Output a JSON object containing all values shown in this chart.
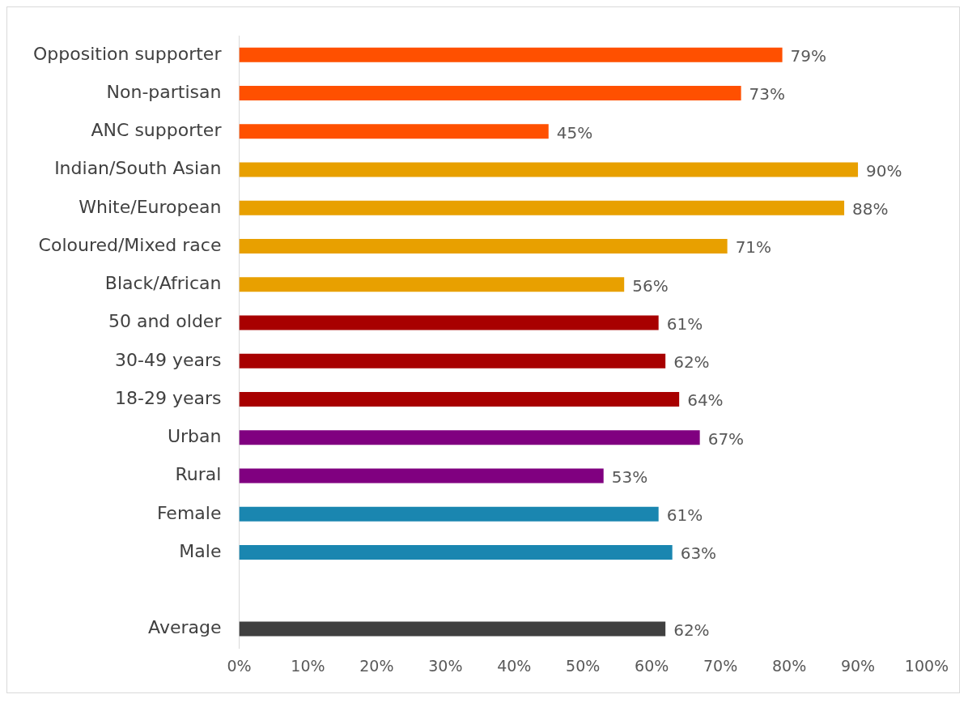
{
  "chart_data": {
    "type": "bar",
    "orientation": "horizontal",
    "categories": [
      "Opposition supporter",
      "Non-partisan",
      "ANC supporter",
      "Indian/South Asian",
      "White/European",
      "Coloured/Mixed race",
      "Black/African",
      "50 and older",
      "30-49 years",
      "18-29 years",
      "Urban",
      "Rural",
      "Female",
      "Male",
      null,
      "Average"
    ],
    "values": [
      79,
      73,
      45,
      90,
      88,
      71,
      56,
      61,
      62,
      64,
      67,
      53,
      61,
      63,
      null,
      62
    ],
    "colors": [
      "#ff5000",
      "#ff5000",
      "#ff5000",
      "#e8a000",
      "#e8a000",
      "#e8a000",
      "#e8a000",
      "#a80000",
      "#a80000",
      "#a80000",
      "#800080",
      "#800080",
      "#1a86b0",
      "#1a86b0",
      "#1a86b0",
      "#404040"
    ],
    "value_labels": [
      "79%",
      "73%",
      "45%",
      "90%",
      "88%",
      "71%",
      "56%",
      "61%",
      "62%",
      "64%",
      "67%",
      "53%",
      "61%",
      "63%",
      null,
      "62%"
    ],
    "xlim": [
      0,
      100
    ],
    "xticks": [
      {
        "value": 0,
        "label": "0%"
      },
      {
        "value": 10,
        "label": "10%"
      },
      {
        "value": 20,
        "label": "20%"
      },
      {
        "value": 30,
        "label": "30%"
      },
      {
        "value": 40,
        "label": "40%"
      },
      {
        "value": 50,
        "label": "50%"
      },
      {
        "value": 60,
        "label": "60%"
      },
      {
        "value": 70,
        "label": "70%"
      },
      {
        "value": 80,
        "label": "80%"
      },
      {
        "value": 90,
        "label": "90%"
      },
      {
        "value": 100,
        "label": "100%"
      }
    ],
    "grid": false,
    "legend": false
  }
}
